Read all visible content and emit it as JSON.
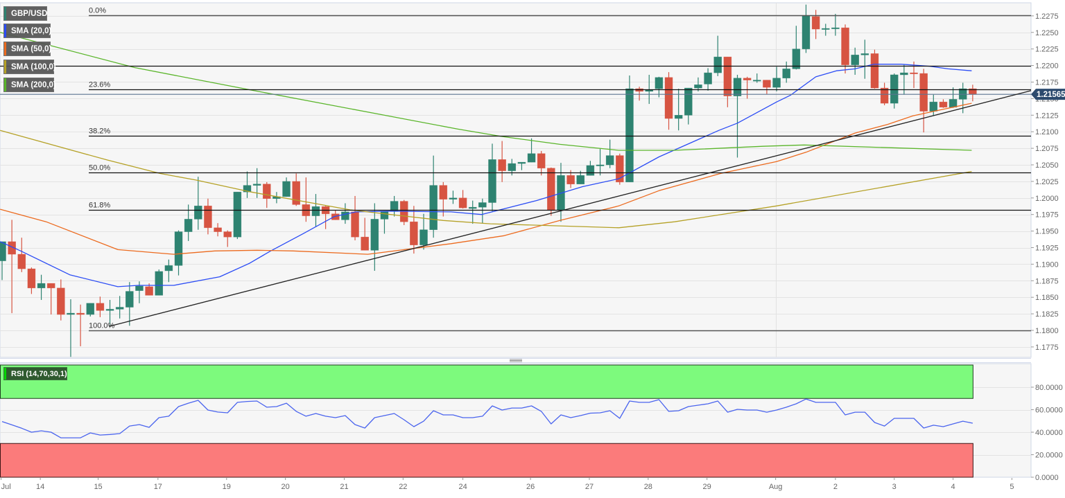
{
  "legend": {
    "symbol": {
      "label": "GBP/USD",
      "color": "#2e8371"
    },
    "sma20": {
      "label": "SMA (20,0)",
      "color": "#2b4cf5"
    },
    "sma50": {
      "label": "SMA (50,0)",
      "color": "#ec6a1e"
    },
    "sma100": {
      "label": "SMA (100,0)",
      "color": "#b5a126"
    },
    "sma200": {
      "label": "SMA (200,0)",
      "color": "#5ab52a"
    },
    "rsi": {
      "label": "RSI (14,70,30,1)",
      "color": "#00d400"
    }
  },
  "price_tag": {
    "value": "1.21565",
    "color": "#2c4a6e"
  },
  "colors": {
    "up": "#2e8371",
    "down": "#d75442",
    "rsi_line": "#4a64ee",
    "overbought_zone": "#7dfa7d",
    "oversold_zone": "#fb7b7b",
    "price_line": "#5b7391",
    "plot_bg": "#f6f6f6",
    "grid": "#e3e3e3"
  },
  "chart_data": {
    "type": "candlestick",
    "title": "GBP/USD",
    "xlabel": "",
    "ylabel": "",
    "ylim": [
      1.1765,
      1.2297
    ],
    "grid": true,
    "y_ticks": [
      "1.2275",
      "1.2250",
      "1.2225",
      "1.2200",
      "1.2175",
      "1.2150",
      "1.2125",
      "1.2100",
      "1.2075",
      "1.2050",
      "1.2025",
      "1.2000",
      "1.1975",
      "1.1950",
      "1.1925",
      "1.1900",
      "1.1875",
      "1.1850",
      "1.1825",
      "1.1800",
      "1.1775"
    ],
    "x_ticks": [
      {
        "label": "Jul",
        "idx": -0.1
      },
      {
        "label": "14",
        "idx": 3.9
      },
      {
        "label": "15",
        "idx": 9.8
      },
      {
        "label": "17",
        "idx": 15.9
      },
      {
        "label": "19",
        "idx": 22.9
      },
      {
        "label": "20",
        "idx": 28.9
      },
      {
        "label": "21",
        "idx": 34.9
      },
      {
        "label": "22",
        "idx": 40.9
      },
      {
        "label": "24",
        "idx": 47.0
      },
      {
        "label": "26",
        "idx": 53.9
      },
      {
        "label": "27",
        "idx": 59.9
      },
      {
        "label": "28",
        "idx": 65.9
      },
      {
        "label": "29",
        "idx": 71.9
      },
      {
        "label": "Aug",
        "idx": 78.9
      },
      {
        "label": "2",
        "idx": 85.0
      },
      {
        "label": "3",
        "idx": 91.0
      },
      {
        "label": "4",
        "idx": 97.0
      },
      {
        "label": "5",
        "idx": 103.0
      }
    ],
    "ohlc_fields": [
      "open",
      "high",
      "low",
      "close"
    ],
    "ohlc": [
      [
        1.1905,
        1.1934,
        1.1876,
        1.1934
      ],
      [
        1.1934,
        1.1967,
        1.1826,
        1.1915
      ],
      [
        1.1915,
        1.194,
        1.1888,
        1.1893
      ],
      [
        1.1893,
        1.1895,
        1.1855,
        1.1864
      ],
      [
        1.1864,
        1.1884,
        1.1846,
        1.1871
      ],
      [
        1.1871,
        1.1871,
        1.1824,
        1.1864
      ],
      [
        1.1864,
        1.1877,
        1.1815,
        1.1824
      ],
      [
        1.1824,
        1.1847,
        1.176,
        1.1826
      ],
      [
        1.1826,
        1.1839,
        1.1776,
        1.1824
      ],
      [
        1.1824,
        1.1841,
        1.1821,
        1.1841
      ],
      [
        1.1841,
        1.1851,
        1.182,
        1.183
      ],
      [
        1.183,
        1.1846,
        1.1807,
        1.1832
      ],
      [
        1.1832,
        1.1852,
        1.1818,
        1.1835
      ],
      [
        1.1835,
        1.1873,
        1.1807,
        1.1859
      ],
      [
        1.186,
        1.1874,
        1.1841,
        1.1867
      ],
      [
        1.1866,
        1.1871,
        1.1853,
        1.1853
      ],
      [
        1.1853,
        1.1892,
        1.1853,
        1.1889
      ],
      [
        1.189,
        1.1907,
        1.1873,
        1.1898
      ],
      [
        1.1898,
        1.1951,
        1.1883,
        1.1949
      ],
      [
        1.1949,
        1.199,
        1.1935,
        1.1968
      ],
      [
        1.1968,
        1.2032,
        1.1952,
        1.1988
      ],
      [
        1.1988,
        1.1999,
        1.1945,
        1.1955
      ],
      [
        1.1955,
        1.1962,
        1.1942,
        1.1949
      ],
      [
        1.1949,
        1.1951,
        1.1926,
        1.1941
      ],
      [
        1.1941,
        1.2009,
        1.1938,
        1.2009
      ],
      [
        1.2009,
        1.204,
        1.2,
        1.2019
      ],
      [
        1.2019,
        1.2045,
        1.2,
        1.2021
      ],
      [
        1.2021,
        1.2024,
        1.1985,
        1.1999
      ],
      [
        1.1999,
        1.2009,
        1.1992,
        1.2002
      ],
      [
        1.2002,
        1.2031,
        1.2002,
        1.2025
      ],
      [
        1.2025,
        1.2037,
        1.1988,
        1.199
      ],
      [
        1.199,
        1.2031,
        1.1964,
        1.1973
      ],
      [
        1.1973,
        1.2006,
        1.1957,
        1.1987
      ],
      [
        1.1987,
        1.1988,
        1.1953,
        1.1976
      ],
      [
        1.1976,
        1.1981,
        1.1967,
        1.1967
      ],
      [
        1.1967,
        1.1992,
        1.1961,
        1.1979
      ],
      [
        1.1979,
        1.2003,
        1.1936,
        1.1941
      ],
      [
        1.1941,
        1.197,
        1.1921,
        1.1921
      ],
      [
        1.1921,
        1.1992,
        1.189,
        1.1968
      ],
      [
        1.1968,
        1.198,
        1.1946,
        1.198
      ],
      [
        1.198,
        1.2003,
        1.1972,
        1.1995
      ],
      [
        1.1995,
        1.1997,
        1.1959,
        1.1964
      ],
      [
        1.1964,
        1.1988,
        1.1916,
        1.1929
      ],
      [
        1.1929,
        1.1976,
        1.1922,
        1.1952
      ],
      [
        1.1952,
        1.2064,
        1.194,
        1.2019
      ],
      [
        1.2019,
        1.2024,
        1.1972,
        1.1998
      ],
      [
        1.1998,
        1.2011,
        1.1991,
        1.2
      ],
      [
        1.2,
        1.2012,
        1.1984,
        1.1985
      ],
      [
        1.1984,
        1.1996,
        1.1961,
        1.1986
      ],
      [
        1.1986,
        1.1999,
        1.1962,
        1.1993
      ],
      [
        1.1993,
        1.2082,
        1.198,
        1.2058
      ],
      [
        1.2058,
        1.2086,
        1.2024,
        1.2041
      ],
      [
        1.2041,
        1.2059,
        1.2034,
        1.2052
      ],
      [
        1.2052,
        1.2054,
        1.2042,
        1.2054
      ],
      [
        1.2054,
        1.209,
        1.2054,
        1.2067
      ],
      [
        1.2067,
        1.2071,
        1.2034,
        1.2045
      ],
      [
        1.2045,
        1.2046,
        1.1973,
        1.1982
      ],
      [
        1.1982,
        1.2053,
        1.1964,
        1.2034
      ],
      [
        1.2034,
        1.2042,
        1.2015,
        1.2021
      ],
      [
        1.2021,
        1.2041,
        1.2021,
        1.2034
      ],
      [
        1.2034,
        1.2056,
        1.2034,
        1.2049
      ],
      [
        1.2049,
        1.2074,
        1.2034,
        1.205
      ],
      [
        1.205,
        1.2088,
        1.2045,
        1.2064
      ],
      [
        1.2064,
        1.2067,
        1.202,
        1.2024
      ],
      [
        1.2024,
        1.2185,
        1.2024,
        1.2165
      ],
      [
        1.2165,
        1.2168,
        1.2147,
        1.2161
      ],
      [
        1.2161,
        1.2186,
        1.2142,
        1.2163
      ],
      [
        1.2165,
        1.2183,
        1.2152,
        1.2182
      ],
      [
        1.2182,
        1.219,
        1.2103,
        1.212
      ],
      [
        1.212,
        1.2165,
        1.2102,
        1.2125
      ],
      [
        1.2125,
        1.2166,
        1.2111,
        1.2166
      ],
      [
        1.2166,
        1.2182,
        1.2161,
        1.2171
      ],
      [
        1.2172,
        1.2196,
        1.2162,
        1.2189
      ],
      [
        1.2189,
        1.2245,
        1.2184,
        1.2213
      ],
      [
        1.2213,
        1.2213,
        1.2137,
        1.2154
      ],
      [
        1.2154,
        1.2186,
        1.2061,
        1.2181
      ],
      [
        1.2181,
        1.2183,
        1.215,
        1.2178
      ],
      [
        1.2177,
        1.2188,
        1.2174,
        1.2178
      ],
      [
        1.2178,
        1.2178,
        1.2157,
        1.2167
      ],
      [
        1.2167,
        1.2198,
        1.2161,
        1.2181
      ],
      [
        1.2181,
        1.2206,
        1.2174,
        1.2195
      ],
      [
        1.2195,
        1.226,
        1.2194,
        1.2225
      ],
      [
        1.2225,
        1.2292,
        1.2219,
        1.2275
      ],
      [
        1.2274,
        1.2284,
        1.224,
        1.2255
      ],
      [
        1.2255,
        1.2263,
        1.2245,
        1.2256
      ],
      [
        1.2256,
        1.2278,
        1.2245,
        1.2257
      ],
      [
        1.2257,
        1.2262,
        1.2188,
        1.2201
      ],
      [
        1.2201,
        1.2227,
        1.2186,
        1.2216
      ],
      [
        1.2216,
        1.2239,
        1.218,
        1.2218
      ],
      [
        1.2218,
        1.2224,
        1.2165,
        1.2166
      ],
      [
        1.2166,
        1.2174,
        1.214,
        1.2143
      ],
      [
        1.2143,
        1.2188,
        1.2135,
        1.2186
      ],
      [
        1.2186,
        1.2201,
        1.2156,
        1.2189
      ],
      [
        1.2189,
        1.2206,
        1.2166,
        1.2188
      ],
      [
        1.2188,
        1.2195,
        1.2099,
        1.2131
      ],
      [
        1.2131,
        1.2156,
        1.2124,
        1.2145
      ],
      [
        1.2145,
        1.2149,
        1.2136,
        1.2137
      ],
      [
        1.2137,
        1.2167,
        1.2136,
        1.2149
      ],
      [
        1.2149,
        1.2174,
        1.2128,
        1.2165
      ],
      [
        1.2165,
        1.2171,
        1.2146,
        1.21565
      ]
    ],
    "series": [
      {
        "name": "SMA (20,0)",
        "key": "sma20",
        "points": [
          [
            -0.2,
            1.1934
          ],
          [
            1.9,
            1.192
          ],
          [
            6.9,
            1.1884
          ],
          [
            11.8,
            1.1866
          ],
          [
            13.9,
            1.1868
          ],
          [
            17.5,
            1.1868
          ],
          [
            22.2,
            1.1881
          ],
          [
            25.2,
            1.1901
          ],
          [
            27.4,
            1.192
          ],
          [
            30.7,
            1.1946
          ],
          [
            33.9,
            1.1972
          ],
          [
            36.1,
            1.1979
          ],
          [
            39.6,
            1.198
          ],
          [
            45.8,
            1.1979
          ],
          [
            48.9,
            1.1975
          ],
          [
            54.5,
            1.1996
          ],
          [
            59.2,
            1.2017
          ],
          [
            62.9,
            1.2029
          ],
          [
            67.0,
            1.2062
          ],
          [
            73.1,
            1.2102
          ],
          [
            75.0,
            1.2113
          ],
          [
            79.0,
            1.2145
          ],
          [
            80.4,
            1.2155
          ],
          [
            83.0,
            1.2183
          ],
          [
            85.1,
            1.2192
          ],
          [
            87.0,
            1.2195
          ],
          [
            88.9,
            1.2202
          ],
          [
            91.7,
            1.2202
          ],
          [
            94.6,
            1.2199
          ],
          [
            96.5,
            1.2195
          ],
          [
            98.9,
            1.2192
          ]
        ]
      },
      {
        "name": "SMA (50,0)",
        "key": "sma50",
        "points": [
          [
            -0.2,
            1.1983
          ],
          [
            4.5,
            1.1964
          ],
          [
            11.8,
            1.1922
          ],
          [
            17.5,
            1.1915
          ],
          [
            21.7,
            1.192
          ],
          [
            26.0,
            1.1921
          ],
          [
            29.7,
            1.192
          ],
          [
            37.3,
            1.1915
          ],
          [
            45.8,
            1.1931
          ],
          [
            51.2,
            1.1943
          ],
          [
            56.9,
            1.1966
          ],
          [
            62.9,
            1.1988
          ],
          [
            67.0,
            1.2011
          ],
          [
            73.3,
            1.2037
          ],
          [
            79.0,
            1.2055
          ],
          [
            82.0,
            1.2069
          ],
          [
            87.0,
            1.2098
          ],
          [
            90.3,
            1.2111
          ],
          [
            92.9,
            1.2124
          ],
          [
            96.0,
            1.2134
          ],
          [
            98.9,
            1.2143
          ]
        ]
      },
      {
        "name": "SMA (100,0)",
        "key": "sma100",
        "points": [
          [
            -0.2,
            1.2102
          ],
          [
            10.8,
            1.2057
          ],
          [
            16.1,
            1.2037
          ],
          [
            19.8,
            1.2027
          ],
          [
            25.4,
            1.2009
          ],
          [
            35.5,
            1.1982
          ],
          [
            45.0,
            1.1966
          ],
          [
            49.8,
            1.1961
          ],
          [
            62.9,
            1.1955
          ],
          [
            68.6,
            1.1964
          ],
          [
            79.0,
            1.1988
          ],
          [
            98.9,
            1.204
          ]
        ]
      },
      {
        "name": "SMA (200,0)",
        "key": "sma200",
        "points": [
          [
            -0.2,
            1.225
          ],
          [
            13.5,
            1.2197
          ],
          [
            25.4,
            1.2163
          ],
          [
            37.9,
            1.2128
          ],
          [
            46.5,
            1.2104
          ],
          [
            50.9,
            1.2093
          ],
          [
            56.9,
            1.2081
          ],
          [
            62.9,
            1.2072
          ],
          [
            68.6,
            1.2072
          ],
          [
            77.6,
            1.2078
          ],
          [
            81.8,
            1.208
          ],
          [
            98.9,
            1.2072
          ]
        ]
      }
    ],
    "trendline": {
      "from": [
        10.9,
        1.1806
      ],
      "to": [
        105.0,
        1.2162
      ]
    },
    "horizontal_lines": [
      {
        "price": 1.22
      }
    ],
    "current_price": 1.21565,
    "fibonacci": {
      "high": 1.2276,
      "low": 1.18,
      "levels": [
        {
          "label": "0.0%",
          "price": 1.2276
        },
        {
          "label": "23.6%",
          "price": 1.2164
        },
        {
          "label": "38.2%",
          "price": 1.2094
        },
        {
          "label": "50.0%",
          "price": 1.2038
        },
        {
          "label": "61.8%",
          "price": 1.1982
        },
        {
          "label": "100.0%",
          "price": 1.18
        }
      ]
    },
    "rsi": {
      "title": "RSI (14,70,30,1)",
      "ylim": [
        0,
        100
      ],
      "overbought": 70,
      "oversold": 30,
      "y_ticks": [
        "80.0000",
        "60.0000",
        "40.0000",
        "20.0000",
        "0.0000"
      ],
      "y_tick_values": [
        80,
        60,
        40,
        20,
        0
      ],
      "values": [
        49.5,
        46.5,
        43.5,
        40.0,
        41.2,
        40.0,
        35.0,
        35.0,
        35.0,
        39.4,
        37.5,
        38.0,
        38.8,
        45.5,
        46.8,
        44.3,
        52.9,
        54.2,
        62.8,
        65.8,
        68.3,
        59.7,
        57.9,
        57.2,
        66.5,
        67.3,
        67.7,
        62.2,
        62.8,
        65.8,
        58.5,
        54.2,
        56.6,
        54.2,
        52.9,
        54.8,
        46.8,
        43.7,
        52.9,
        54.8,
        56.6,
        51.1,
        44.9,
        49.8,
        59.1,
        55.4,
        55.4,
        52.9,
        52.9,
        54.2,
        63.4,
        59.7,
        61.5,
        61.5,
        63.4,
        58.5,
        47.4,
        55.4,
        52.9,
        54.8,
        56.9,
        57.2,
        59.1,
        52.3,
        67.7,
        66.5,
        66.5,
        68.9,
        58.5,
        59.1,
        62.8,
        64.0,
        65.2,
        67.7,
        57.8,
        60.3,
        59.7,
        59.7,
        57.8,
        59.7,
        62.2,
        65.2,
        69.5,
        66.5,
        66.5,
        66.5,
        55.4,
        57.8,
        57.8,
        48.6,
        45.5,
        52.3,
        52.3,
        52.3,
        43.7,
        46.2,
        44.9,
        47.4,
        49.8,
        48.0
      ]
    }
  }
}
